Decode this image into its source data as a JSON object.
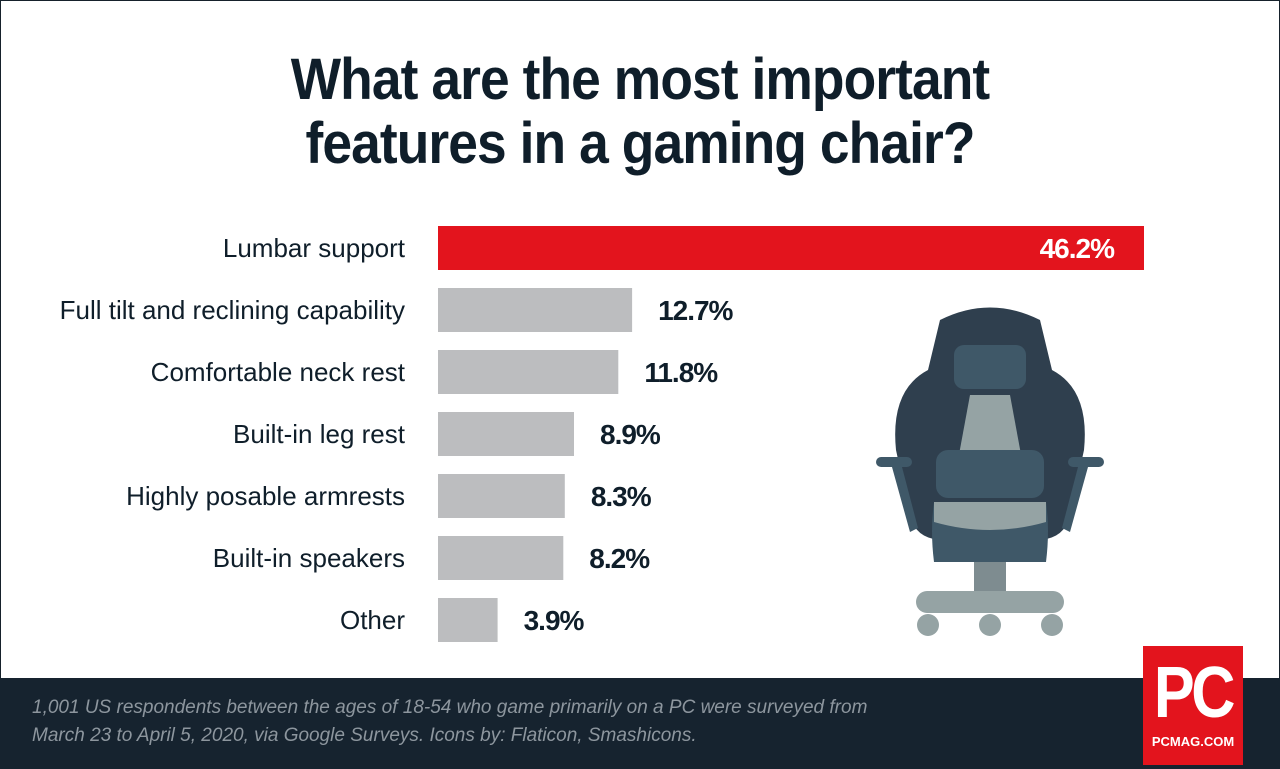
{
  "title_lines": [
    "What are the most important",
    "features in a gaming chair?"
  ],
  "chart_data": {
    "type": "bar",
    "orientation": "horizontal",
    "title": "What are the most important features in a gaming chair?",
    "categories": [
      "Lumbar support",
      "Full tilt and reclining capability",
      "Comfortable neck rest",
      "Built-in leg rest",
      "Highly posable armrests",
      "Built-in speakers",
      "Other"
    ],
    "values": [
      46.2,
      12.7,
      11.8,
      8.9,
      8.3,
      8.2,
      3.9
    ],
    "value_labels": [
      "46.2%",
      "12.7%",
      "11.8%",
      "8.9%",
      "8.3%",
      "8.2%",
      "3.9%"
    ],
    "unit": "%",
    "xlim": [
      0,
      46.2
    ],
    "grid": false,
    "legend": "none",
    "highlight_index": 0,
    "colors": {
      "highlight": "#e3141d",
      "default": "#bcbdbf",
      "text": "#0f1e2a"
    }
  },
  "footer": {
    "note_lines": [
      "1,001 US respondents between the ages of 18-54 who game primarily on a PC were surveyed from",
      "March 23 to April 5, 2020, via Google Surveys. Icons by: Flaticon, Smashicons."
    ]
  },
  "logo": {
    "mark": "PC",
    "site": "PCMAG.COM"
  },
  "illustration": {
    "icon": "gaming-chair-icon"
  }
}
